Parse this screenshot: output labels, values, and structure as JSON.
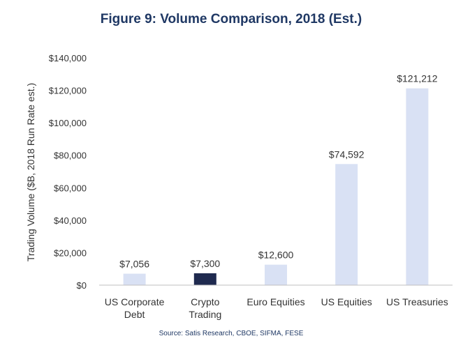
{
  "chart_data": {
    "type": "bar",
    "title": "Figure 9: Volume Comparison, 2018 (Est.)",
    "ylabel": "Trading Volume ($B, 2018 Run Rate est.)",
    "xlabel": "",
    "ylim": [
      0,
      140000
    ],
    "yticks": [
      0,
      20000,
      40000,
      60000,
      80000,
      100000,
      120000,
      140000
    ],
    "ytick_labels": [
      "$0",
      "$20,000",
      "$40,000",
      "$60,000",
      "$80,000",
      "$100,000",
      "$120,000",
      "$140,000"
    ],
    "categories": [
      [
        "US Corporate",
        "Debt"
      ],
      [
        "Crypto",
        "Trading"
      ],
      [
        "Euro Equities"
      ],
      [
        "US Equities"
      ],
      [
        "US Treasuries"
      ]
    ],
    "values": [
      7056,
      7300,
      12600,
      74592,
      121212
    ],
    "data_labels": [
      "$7,056",
      "$7,300",
      "$12,600",
      "$74,592",
      "$121,212"
    ],
    "highlight_index": 1,
    "grid": false,
    "legend": "none",
    "source": "Source: Satis Research, CBOE, SIFMA, FESE"
  },
  "colors": {
    "bar": "#d9e1f4",
    "highlight": "#1f2a4f",
    "axis": "#bfbfbf",
    "title": "#1f3864",
    "text": "#333333"
  }
}
